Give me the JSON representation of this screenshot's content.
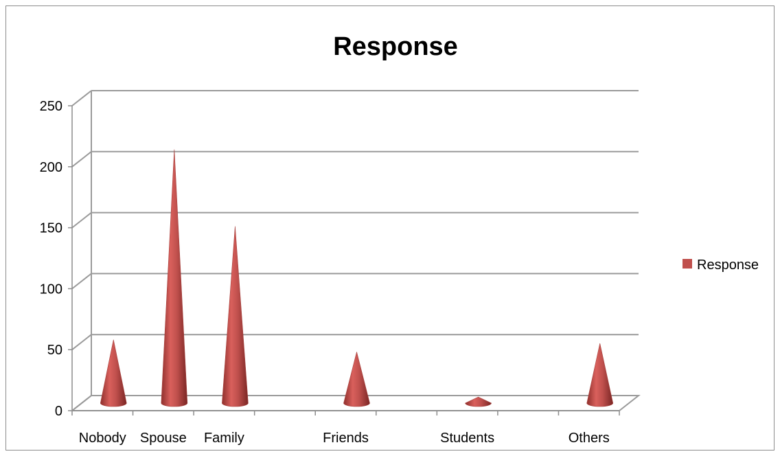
{
  "chart_data": {
    "type": "bar",
    "title": "Response",
    "categories": [
      "Nobody",
      "Spouse",
      "Family",
      "",
      "Friends",
      "",
      "Students",
      "",
      "Others"
    ],
    "series": [
      {
        "name": "Response",
        "values": [
          52,
          208,
          145,
          0,
          42,
          0,
          5,
          0,
          49
        ],
        "color": "#c0504d"
      }
    ],
    "ylim": [
      0,
      250
    ],
    "yticks": [
      "0",
      "50",
      "100",
      "150",
      "200",
      "250"
    ],
    "grid": true,
    "legend": "right",
    "xlabel": "",
    "ylabel": ""
  }
}
